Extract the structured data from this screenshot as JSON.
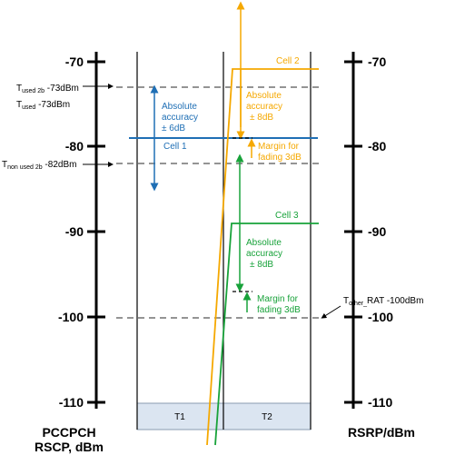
{
  "colors": {
    "blue": "#1f6fb5",
    "orange": "#f5a800",
    "green": "#18a23a",
    "period_fill": "#dbe5f1",
    "axis": "#000000",
    "dashed": "#555555"
  },
  "left_axis": {
    "title_line1": "PCCPCH",
    "title_line2": "RSCP, dBm",
    "ticks": [
      "-70",
      "-80",
      "-90",
      "-100",
      "-110"
    ]
  },
  "right_axis": {
    "title": "RSRP/dBm",
    "ticks": [
      "-70",
      "-80",
      "-90",
      "-100",
      "-110"
    ]
  },
  "thresholds": {
    "t_used_2b": {
      "t": "T",
      "sub": "used 2b",
      "value": " -73dBm"
    },
    "t_used": {
      "t": "T",
      "sub": "used",
      "value": " -73dBm"
    },
    "t_non_used_2b": {
      "t": "T",
      "sub": "non used 2b",
      "value": " -82dBm"
    },
    "t_other_rat": {
      "t": "T",
      "sub": "other_",
      "value": "RAT -100dBm"
    }
  },
  "cells": {
    "cell1": "Cell 1",
    "cell2": "Cell 2",
    "cell3": "Cell 3"
  },
  "annotations": {
    "blue_acc_1": "Absolute",
    "blue_acc_2": "accuracy",
    "blue_acc_3": "± 6dB",
    "orange_acc_1": "Absolute",
    "orange_acc_2": "accuracy",
    "orange_acc_3": "± 8dB",
    "orange_margin_1": "Margin for",
    "orange_margin_2": "fading 3dB",
    "green_acc_1": "Absolute",
    "green_acc_2": "accuracy",
    "green_acc_3": "± 8dB",
    "green_margin_1": "Margin for",
    "green_margin_2": "fading 3dB"
  },
  "periods": [
    "T1",
    "T2"
  ]
}
